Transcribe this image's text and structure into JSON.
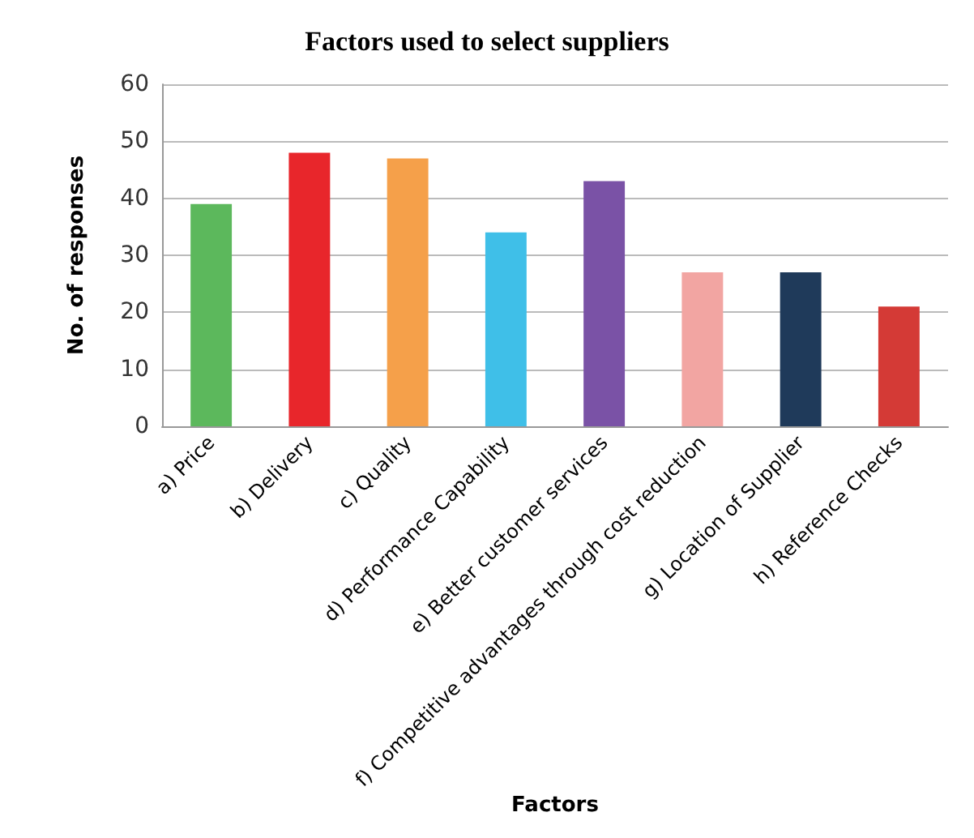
{
  "chart_data": {
    "type": "bar",
    "title": "Factors used to select suppliers",
    "xlabel": "Factors",
    "ylabel": "No. of responses",
    "categories": [
      "a) Price",
      "b) Delivery",
      "c) Quality",
      "d) Performance Capability",
      "e) Better customer services",
      "f) Competitive advantages through cost reduction",
      "g) Location of Supplier",
      "h) Reference Checks"
    ],
    "values": [
      39,
      48,
      47,
      34,
      43,
      27,
      27,
      21
    ],
    "colors": [
      "#5cb85c",
      "#e8262b",
      "#f5a04a",
      "#3fbfe8",
      "#7a52a6",
      "#f2a5a2",
      "#1f3a5a",
      "#d43a36"
    ],
    "ylim": [
      0,
      60
    ],
    "yticks": [
      0,
      10,
      20,
      30,
      40,
      50,
      60
    ],
    "grid": "y"
  }
}
